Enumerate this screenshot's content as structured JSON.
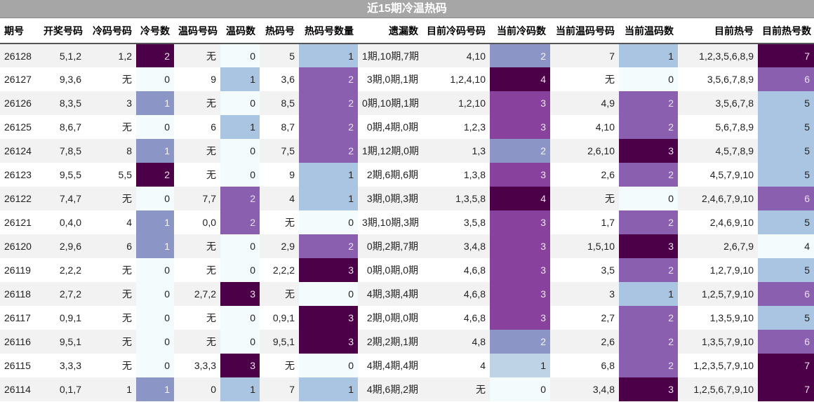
{
  "title": "近15期冷温热码",
  "headers": [
    "期号",
    "开奖号码",
    "冷码号码",
    "冷号数",
    "温码号码",
    "温码数",
    "热码号",
    "热码号数量",
    "遗漏数",
    "目前冷码号码",
    "当前冷码数",
    "当前温码号码",
    "当前温码数",
    "目前热号",
    "目前热号数"
  ],
  "rows": [
    [
      "26128",
      "5,1,2",
      "1,2",
      "2",
      "无",
      "0",
      "5",
      "1",
      "1期,10期,7期",
      "4,10",
      "2",
      "7",
      "1",
      "1,2,3,5,6,8,9",
      "7"
    ],
    [
      "26127",
      "9,3,6",
      "无",
      "0",
      "9",
      "1",
      "3,6",
      "2",
      "3期,0期,1期",
      "1,2,4,10",
      "4",
      "无",
      "0",
      "3,5,6,7,8,9",
      "6"
    ],
    [
      "26126",
      "8,3,5",
      "3",
      "1",
      "无",
      "0",
      "8,5",
      "2",
      "0期,10期,1期",
      "1,2,10",
      "3",
      "4,9",
      "2",
      "3,5,6,7,8",
      "5"
    ],
    [
      "26125",
      "8,6,7",
      "无",
      "0",
      "6",
      "1",
      "8,7",
      "2",
      "0期,4期,0期",
      "1,2,3",
      "3",
      "4,10",
      "2",
      "5,6,7,8,9",
      "5"
    ],
    [
      "26124",
      "7,8,5",
      "8",
      "1",
      "无",
      "0",
      "7,5",
      "2",
      "1期,12期,0期",
      "1,3",
      "2",
      "2,6,10",
      "3",
      "4,5,7,8,9",
      "5"
    ],
    [
      "26123",
      "9,5,5",
      "5,5",
      "2",
      "无",
      "0",
      "9",
      "1",
      "2期,6期,6期",
      "1,3,8",
      "3",
      "2,6",
      "2",
      "4,5,7,9,10",
      "5"
    ],
    [
      "26122",
      "7,4,7",
      "无",
      "0",
      "7,7",
      "2",
      "4",
      "1",
      "3期,0期,3期",
      "1,3,5,8",
      "4",
      "无",
      "0",
      "2,4,6,7,9,10",
      "6"
    ],
    [
      "26121",
      "0,4,0",
      "4",
      "1",
      "0,0",
      "2",
      "无",
      "0",
      "3期,10期,3期",
      "3,5,8",
      "3",
      "1,7",
      "2",
      "2,4,6,9,10",
      "5"
    ],
    [
      "26120",
      "2,9,6",
      "6",
      "1",
      "无",
      "0",
      "2,9",
      "2",
      "0期,2期,7期",
      "3,4,8",
      "3",
      "1,5,10",
      "3",
      "2,6,7,9",
      "4"
    ],
    [
      "26119",
      "2,2,2",
      "无",
      "0",
      "无",
      "0",
      "2,2,2",
      "3",
      "0期,0期,0期",
      "4,6,8",
      "3",
      "3,5",
      "2",
      "1,2,7,9,10",
      "5"
    ],
    [
      "26118",
      "2,7,2",
      "无",
      "0",
      "2,7,2",
      "3",
      "无",
      "0",
      "4期,3期,4期",
      "4,6,8",
      "3",
      "3",
      "1",
      "1,2,5,7,9,10",
      "6"
    ],
    [
      "26117",
      "0,9,1",
      "无",
      "0",
      "无",
      "0",
      "0,9,1",
      "3",
      "2期,0期,0期",
      "4,6,8",
      "3",
      "2,7",
      "2",
      "1,3,5,9,10",
      "5"
    ],
    [
      "26116",
      "9,5,1",
      "无",
      "0",
      "无",
      "0",
      "9,5,1",
      "3",
      "2期,2期,1期",
      "4,8",
      "2",
      "2,6",
      "2",
      "1,3,5,7,9,10",
      "6"
    ],
    [
      "26115",
      "3,3,3",
      "无",
      "0",
      "3,3,3",
      "3",
      "无",
      "0",
      "4期,4期,4期",
      "4",
      "1",
      "6,8",
      "2",
      "1,2,3,5,7,9,10",
      "7"
    ],
    [
      "26114",
      "0,1,7",
      "1",
      "1",
      "0",
      "1",
      "7",
      "1",
      "4期,6期,2期",
      "无",
      "0",
      "3,4,8",
      "3",
      "1,2,5,6,7,9,10",
      "7"
    ]
  ],
  "colors": {
    "title_bg": "#a6a6a6",
    "level_0": "#f4fbfc",
    "level_1": "#a9c5e1",
    "level_2": "#8b5fb0",
    "level_3": "#4b0048"
  }
}
